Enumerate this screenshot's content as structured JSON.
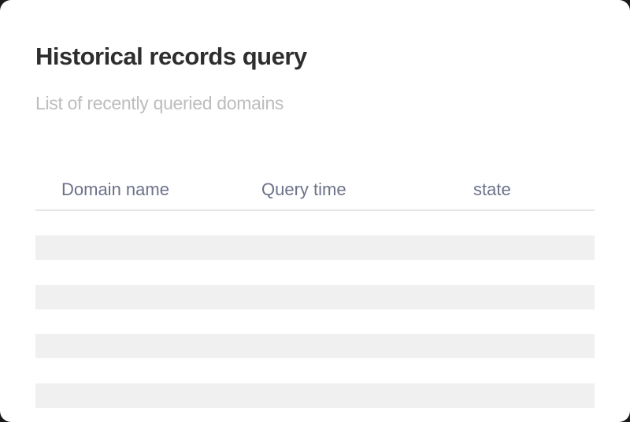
{
  "title": "Historical records query",
  "subtitle": "List of recently queried domains",
  "table": {
    "columns": [
      "Domain name",
      "Query time",
      "state"
    ],
    "rows": [
      {},
      {},
      {},
      {}
    ]
  }
}
